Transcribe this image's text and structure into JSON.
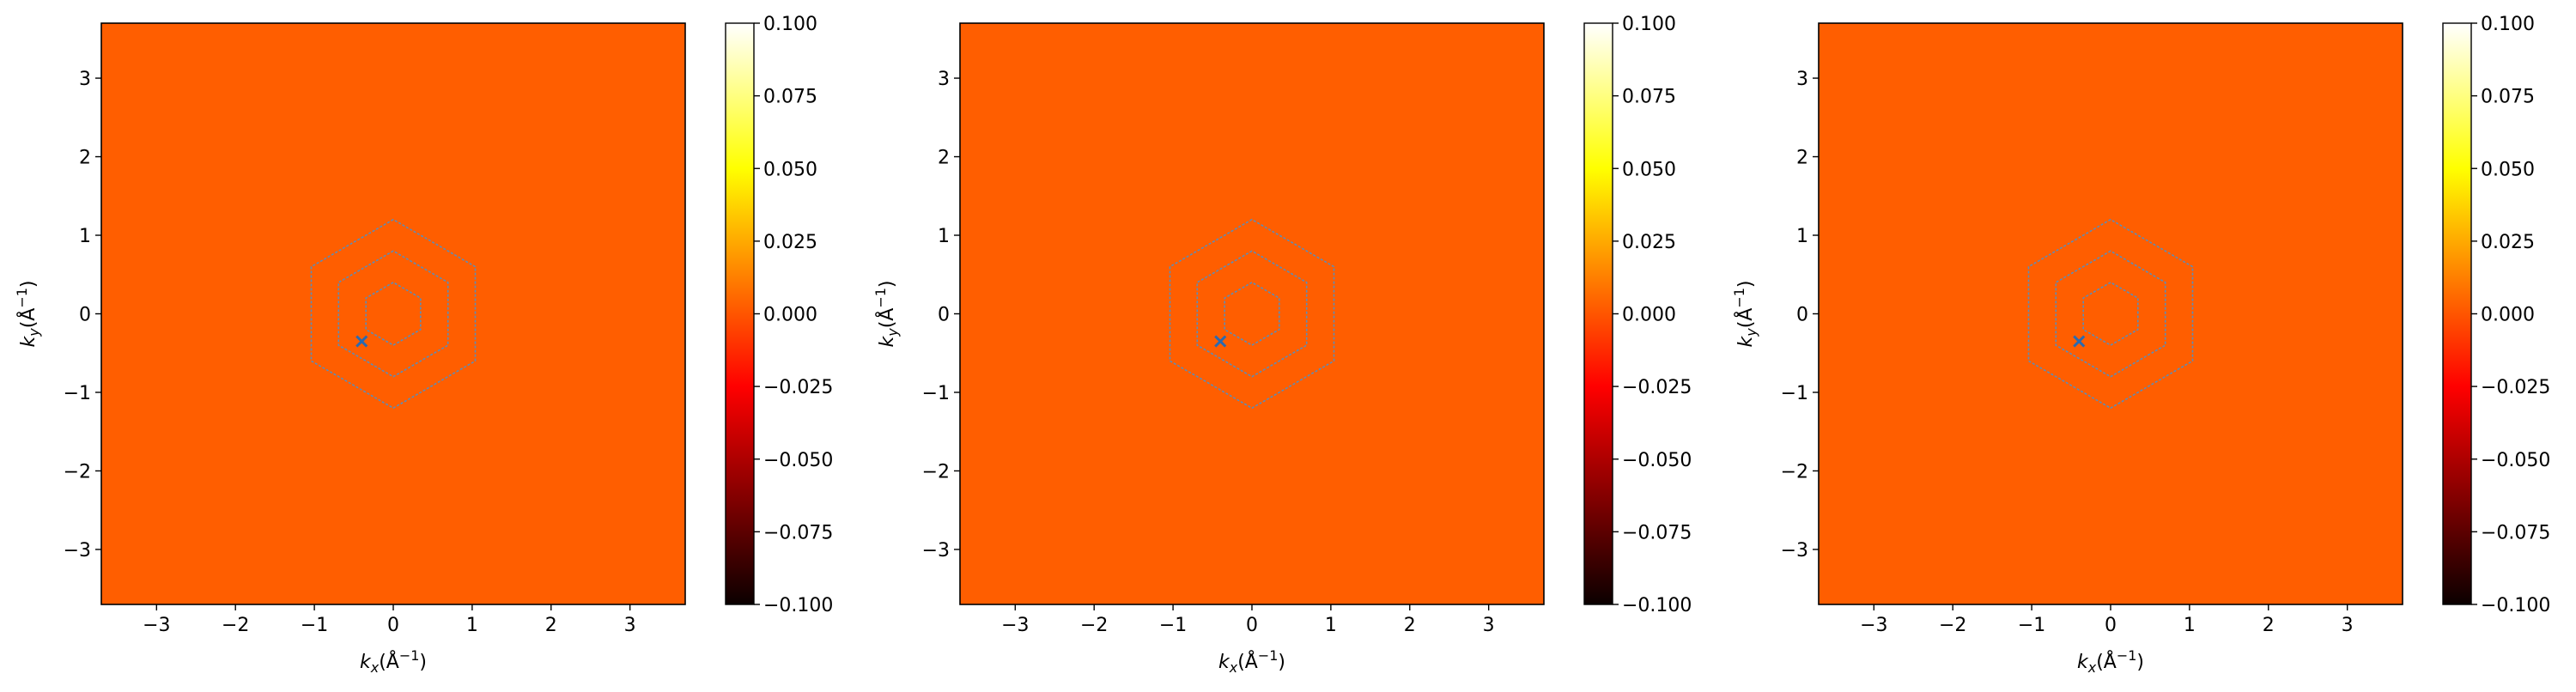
{
  "chart_data": [
    {
      "type": "heatmap",
      "title": "",
      "xlabel": "k_x(Å^-1)",
      "ylabel": "k_y(Å^-1)",
      "xlim": [
        -3.7,
        3.7
      ],
      "ylim": [
        -3.7,
        3.7
      ],
      "xticks": [
        -3,
        -2,
        -1,
        0,
        1,
        2,
        3
      ],
      "yticks": [
        -3,
        -2,
        -1,
        0,
        1,
        2,
        3
      ],
      "field_value": 0.0,
      "field_color": "#ff5e00",
      "colormap": "hot",
      "colorbar": {
        "range": [
          -0.1,
          0.1
        ],
        "ticks": [
          "-0.100",
          "-0.075",
          "-0.050",
          "-0.025",
          "0.000",
          "0.025",
          "0.050",
          "0.075",
          "0.100"
        ]
      },
      "hexagons": {
        "circumradii": [
          1.2,
          0.8,
          0.4
        ],
        "color": "#5b8db8",
        "style": "dashed"
      },
      "marker": {
        "shape": "x",
        "x": -0.4,
        "y": -0.35,
        "color": "#2a6ab0"
      },
      "grid": false
    },
    {
      "type": "heatmap",
      "title": "",
      "xlabel": "k_x(Å^-1)",
      "ylabel": "k_y(Å^-1)",
      "xlim": [
        -3.7,
        3.7
      ],
      "ylim": [
        -3.7,
        3.7
      ],
      "xticks": [
        -3,
        -2,
        -1,
        0,
        1,
        2,
        3
      ],
      "yticks": [
        -3,
        -2,
        -1,
        0,
        1,
        2,
        3
      ],
      "field_value": 0.0,
      "field_color": "#ff5e00",
      "colormap": "hot",
      "colorbar": {
        "range": [
          -0.1,
          0.1
        ],
        "ticks": [
          "-0.100",
          "-0.075",
          "-0.050",
          "-0.025",
          "0.000",
          "0.025",
          "0.050",
          "0.075",
          "0.100"
        ]
      },
      "hexagons": {
        "circumradii": [
          1.2,
          0.8,
          0.4
        ],
        "color": "#5b8db8",
        "style": "dashed"
      },
      "marker": {
        "shape": "x",
        "x": -0.4,
        "y": -0.35,
        "color": "#2a6ab0"
      },
      "grid": false
    },
    {
      "type": "heatmap",
      "title": "",
      "xlabel": "k_x(Å^-1)",
      "ylabel": "k_y(Å^-1)",
      "xlim": [
        -3.7,
        3.7
      ],
      "ylim": [
        -3.7,
        3.7
      ],
      "xticks": [
        -3,
        -2,
        -1,
        0,
        1,
        2,
        3
      ],
      "yticks": [
        -3,
        -2,
        -1,
        0,
        1,
        2,
        3
      ],
      "field_value": 0.0,
      "field_color": "#ff5e00",
      "colormap": "hot",
      "colorbar": {
        "range": [
          -0.1,
          0.1
        ],
        "ticks": [
          "-0.100",
          "-0.075",
          "-0.050",
          "-0.025",
          "0.000",
          "0.025",
          "0.050",
          "0.075",
          "0.100"
        ]
      },
      "hexagons": {
        "circumradii": [
          1.2,
          0.8,
          0.4
        ],
        "color": "#5b8db8",
        "style": "dashed"
      },
      "marker": {
        "shape": "x",
        "x": -0.4,
        "y": -0.35,
        "color": "#2a6ab0"
      },
      "grid": false
    }
  ]
}
